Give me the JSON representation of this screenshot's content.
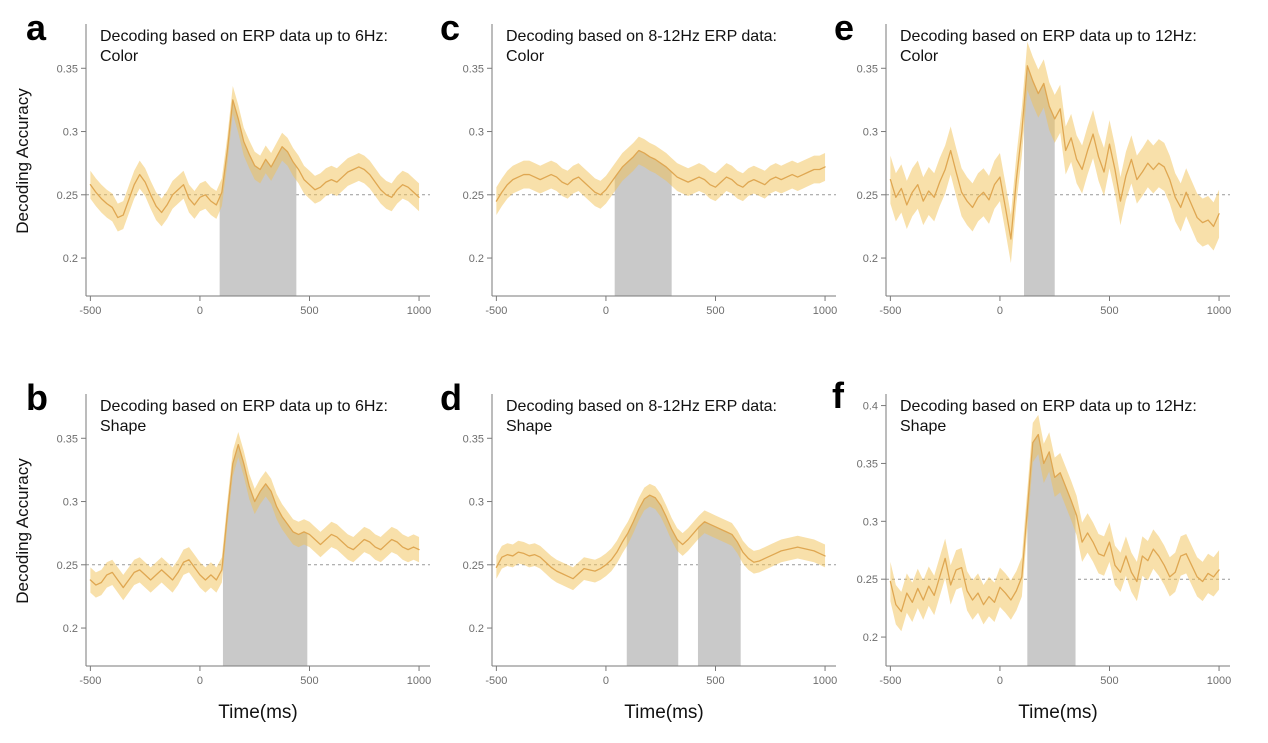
{
  "figure": {
    "ylabel": "Decoding Accuracy",
    "xlabel": "Time(ms)",
    "colors": {
      "band_fill": "#F2C155",
      "band_opacity": 0.5,
      "mean_line": "#DFA752",
      "significance_fill": "#C9C9C9",
      "chance_line": "#999999",
      "axis": "#7A7A7A",
      "tick_text": "#6E6E6E",
      "title_text": "#111111"
    },
    "x_ticks": [
      -500,
      0,
      500,
      1000
    ]
  },
  "chart_data": [
    {
      "id": "a",
      "letter": "a",
      "type": "line",
      "row": 0,
      "col": 0,
      "title_line1": "Decoding based on ERP data up to 6Hz:",
      "title_line2": "Color",
      "xlabel": "Time(ms)",
      "ylabel": "Decoding Accuracy",
      "x_start": -500,
      "x_step": 25,
      "x_range": [
        -520,
        1050
      ],
      "ylim": [
        0.17,
        0.385
      ],
      "y_ticks": [
        0.2,
        0.25,
        0.3,
        0.35
      ],
      "chance_level": 0.25,
      "significance_windows_ms": [
        [
          90,
          440
        ]
      ],
      "band_halfwidth": 0.011,
      "mean": [
        0.258,
        0.252,
        0.247,
        0.243,
        0.24,
        0.232,
        0.234,
        0.246,
        0.258,
        0.266,
        0.26,
        0.25,
        0.241,
        0.236,
        0.242,
        0.25,
        0.254,
        0.258,
        0.247,
        0.242,
        0.248,
        0.25,
        0.245,
        0.242,
        0.252,
        0.285,
        0.325,
        0.31,
        0.292,
        0.282,
        0.273,
        0.27,
        0.278,
        0.272,
        0.28,
        0.288,
        0.284,
        0.276,
        0.27,
        0.262,
        0.258,
        0.254,
        0.256,
        0.26,
        0.262,
        0.26,
        0.264,
        0.268,
        0.27,
        0.272,
        0.27,
        0.266,
        0.26,
        0.254,
        0.25,
        0.248,
        0.254,
        0.258,
        0.256,
        0.252,
        0.248
      ]
    },
    {
      "id": "b",
      "letter": "b",
      "type": "line",
      "row": 1,
      "col": 0,
      "title_line1": "Decoding based on ERP data up to 6Hz:",
      "title_line2": "Shape",
      "xlabel": "Time(ms)",
      "ylabel": "Decoding Accuracy",
      "x_start": -500,
      "x_step": 25,
      "x_range": [
        -520,
        1050
      ],
      "ylim": [
        0.17,
        0.385
      ],
      "y_ticks": [
        0.2,
        0.25,
        0.3,
        0.35
      ],
      "chance_level": 0.25,
      "significance_windows_ms": [
        [
          105,
          490
        ]
      ],
      "band_halfwidth": 0.01,
      "mean": [
        0.238,
        0.234,
        0.236,
        0.242,
        0.244,
        0.238,
        0.232,
        0.238,
        0.244,
        0.246,
        0.242,
        0.238,
        0.242,
        0.246,
        0.242,
        0.238,
        0.244,
        0.252,
        0.254,
        0.248,
        0.242,
        0.238,
        0.242,
        0.238,
        0.246,
        0.29,
        0.33,
        0.345,
        0.33,
        0.312,
        0.3,
        0.308,
        0.314,
        0.308,
        0.296,
        0.288,
        0.282,
        0.276,
        0.274,
        0.276,
        0.274,
        0.27,
        0.266,
        0.27,
        0.274,
        0.272,
        0.268,
        0.264,
        0.262,
        0.266,
        0.27,
        0.268,
        0.264,
        0.262,
        0.266,
        0.27,
        0.268,
        0.264,
        0.262,
        0.264,
        0.262
      ]
    },
    {
      "id": "c",
      "letter": "c",
      "type": "line",
      "row": 0,
      "col": 1,
      "title_line1": "Decoding based on 8-12Hz ERP data:",
      "title_line2": "Color",
      "xlabel": "Time(ms)",
      "ylabel": "Decoding Accuracy",
      "x_start": -500,
      "x_step": 25,
      "x_range": [
        -520,
        1050
      ],
      "ylim": [
        0.17,
        0.385
      ],
      "y_ticks": [
        0.2,
        0.25,
        0.3,
        0.35
      ],
      "chance_level": 0.25,
      "significance_windows_ms": [
        [
          40,
          300
        ]
      ],
      "band_halfwidth": 0.011,
      "mean": [
        0.245,
        0.252,
        0.258,
        0.262,
        0.264,
        0.266,
        0.266,
        0.264,
        0.262,
        0.264,
        0.266,
        0.264,
        0.26,
        0.258,
        0.262,
        0.264,
        0.26,
        0.256,
        0.252,
        0.25,
        0.254,
        0.26,
        0.266,
        0.272,
        0.276,
        0.28,
        0.285,
        0.283,
        0.28,
        0.278,
        0.275,
        0.272,
        0.268,
        0.264,
        0.262,
        0.26,
        0.262,
        0.264,
        0.262,
        0.258,
        0.256,
        0.26,
        0.264,
        0.262,
        0.258,
        0.256,
        0.26,
        0.262,
        0.26,
        0.258,
        0.262,
        0.264,
        0.262,
        0.264,
        0.266,
        0.264,
        0.266,
        0.268,
        0.27,
        0.27,
        0.272
      ]
    },
    {
      "id": "d",
      "letter": "d",
      "type": "line",
      "row": 1,
      "col": 1,
      "title_line1": "Decoding based on 8-12Hz ERP data:",
      "title_line2": "Shape",
      "xlabel": "Time(ms)",
      "ylabel": "Decoding Accuracy",
      "x_start": -500,
      "x_step": 25,
      "x_range": [
        -520,
        1050
      ],
      "ylim": [
        0.17,
        0.385
      ],
      "y_ticks": [
        0.2,
        0.25,
        0.3,
        0.35
      ],
      "chance_level": 0.25,
      "significance_windows_ms": [
        [
          95,
          330
        ],
        [
          420,
          615
        ]
      ],
      "band_halfwidth": 0.009,
      "mean": [
        0.248,
        0.256,
        0.258,
        0.257,
        0.26,
        0.259,
        0.257,
        0.258,
        0.256,
        0.252,
        0.248,
        0.245,
        0.243,
        0.241,
        0.239,
        0.243,
        0.247,
        0.246,
        0.245,
        0.247,
        0.25,
        0.254,
        0.26,
        0.268,
        0.275,
        0.284,
        0.294,
        0.302,
        0.305,
        0.303,
        0.297,
        0.288,
        0.278,
        0.27,
        0.266,
        0.27,
        0.275,
        0.28,
        0.284,
        0.282,
        0.28,
        0.278,
        0.276,
        0.274,
        0.268,
        0.26,
        0.255,
        0.252,
        0.253,
        0.255,
        0.257,
        0.259,
        0.261,
        0.262,
        0.263,
        0.264,
        0.263,
        0.262,
        0.261,
        0.259,
        0.257
      ]
    },
    {
      "id": "e",
      "letter": "e",
      "type": "line",
      "row": 0,
      "col": 2,
      "title_line1": "Decoding based on ERP data up to 12Hz:",
      "title_line2": "Color",
      "xlabel": "Time(ms)",
      "ylabel": "Decoding Accuracy",
      "x_start": -500,
      "x_step": 25,
      "x_range": [
        -520,
        1050
      ],
      "ylim": [
        0.17,
        0.385
      ],
      "y_ticks": [
        0.2,
        0.25,
        0.3,
        0.35
      ],
      "chance_level": 0.25,
      "significance_windows_ms": [
        [
          110,
          250
        ]
      ],
      "band_halfwidth": 0.019,
      "mean": [
        0.262,
        0.248,
        0.255,
        0.242,
        0.252,
        0.258,
        0.245,
        0.253,
        0.248,
        0.26,
        0.27,
        0.285,
        0.268,
        0.252,
        0.245,
        0.24,
        0.248,
        0.252,
        0.246,
        0.258,
        0.264,
        0.24,
        0.215,
        0.262,
        0.3,
        0.352,
        0.34,
        0.33,
        0.338,
        0.32,
        0.31,
        0.318,
        0.285,
        0.295,
        0.278,
        0.27,
        0.285,
        0.298,
        0.28,
        0.268,
        0.29,
        0.27,
        0.245,
        0.265,
        0.278,
        0.262,
        0.268,
        0.275,
        0.27,
        0.275,
        0.272,
        0.262,
        0.248,
        0.24,
        0.252,
        0.242,
        0.232,
        0.228,
        0.23,
        0.225,
        0.235
      ]
    },
    {
      "id": "f",
      "letter": "f",
      "type": "line",
      "row": 1,
      "col": 2,
      "title_line1": "Decoding based on ERP data up to 12Hz:",
      "title_line2": "Shape",
      "xlabel": "Time(ms)",
      "ylabel": "Decoding Accuracy",
      "x_start": -500,
      "x_step": 25,
      "x_range": [
        -520,
        1050
      ],
      "ylim": [
        0.175,
        0.41
      ],
      "y_ticks": [
        0.2,
        0.25,
        0.3,
        0.35,
        0.4
      ],
      "chance_level": 0.25,
      "significance_windows_ms": [
        [
          125,
          345
        ]
      ],
      "band_halfwidth": 0.017,
      "mean": [
        0.248,
        0.228,
        0.222,
        0.238,
        0.23,
        0.242,
        0.232,
        0.244,
        0.236,
        0.252,
        0.268,
        0.245,
        0.258,
        0.26,
        0.24,
        0.232,
        0.238,
        0.228,
        0.235,
        0.23,
        0.243,
        0.238,
        0.232,
        0.24,
        0.252,
        0.31,
        0.368,
        0.375,
        0.35,
        0.36,
        0.338,
        0.342,
        0.33,
        0.318,
        0.305,
        0.282,
        0.29,
        0.282,
        0.272,
        0.27,
        0.282,
        0.262,
        0.256,
        0.27,
        0.256,
        0.248,
        0.27,
        0.266,
        0.276,
        0.27,
        0.262,
        0.252,
        0.256,
        0.27,
        0.272,
        0.262,
        0.252,
        0.248,
        0.255,
        0.252,
        0.258
      ]
    }
  ]
}
